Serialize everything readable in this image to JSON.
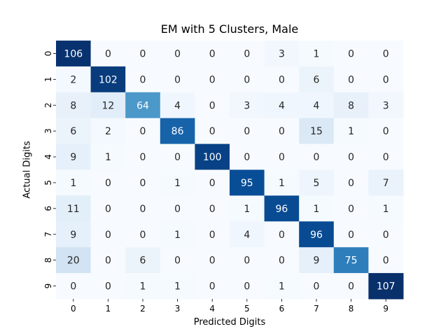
{
  "chart_data": {
    "type": "heatmap",
    "title": "EM with 5 Clusters, Male",
    "xlabel": "Predicted Digits",
    "ylabel": "Actual Digits",
    "x_categories": [
      "0",
      "1",
      "2",
      "3",
      "4",
      "5",
      "6",
      "7",
      "8",
      "9"
    ],
    "y_categories": [
      "0",
      "1",
      "2",
      "3",
      "4",
      "5",
      "6",
      "7",
      "8",
      "9"
    ],
    "matrix": [
      [
        106,
        0,
        0,
        0,
        0,
        0,
        3,
        1,
        0,
        0
      ],
      [
        2,
        102,
        0,
        0,
        0,
        0,
        0,
        6,
        0,
        0
      ],
      [
        8,
        12,
        64,
        4,
        0,
        3,
        4,
        4,
        8,
        3
      ],
      [
        6,
        2,
        0,
        86,
        0,
        0,
        0,
        15,
        1,
        0
      ],
      [
        9,
        1,
        0,
        0,
        100,
        0,
        0,
        0,
        0,
        0
      ],
      [
        1,
        0,
        0,
        1,
        0,
        95,
        1,
        5,
        0,
        7
      ],
      [
        11,
        0,
        0,
        0,
        0,
        1,
        96,
        1,
        0,
        1
      ],
      [
        9,
        0,
        0,
        1,
        0,
        4,
        0,
        96,
        0,
        0
      ],
      [
        20,
        0,
        6,
        0,
        0,
        0,
        0,
        9,
        75,
        0
      ],
      [
        0,
        0,
        1,
        1,
        0,
        0,
        1,
        0,
        0,
        107
      ]
    ],
    "colormap": "Blues",
    "value_range": [
      0,
      107
    ],
    "colorbar": false
  }
}
